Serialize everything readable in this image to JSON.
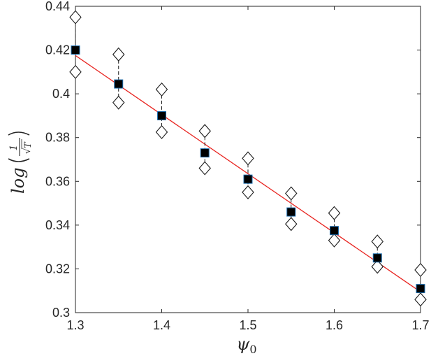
{
  "chart_data": {
    "type": "scatter",
    "xlabel": "ψ0",
    "ylabel": "log(1/√T)",
    "xlim": [
      1.3,
      1.7
    ],
    "ylim": [
      0.3,
      0.44
    ],
    "x_ticks": [
      "1.3",
      "1.4",
      "1.5",
      "1.6",
      "1.7"
    ],
    "y_ticks": [
      "0.3",
      "0.32",
      "0.34",
      "0.36",
      "0.38",
      "0.4",
      "0.42",
      "0.44"
    ],
    "grid": false,
    "legend": "none",
    "series": [
      {
        "marker": "square",
        "color": "#000000",
        "edge_color": "#1f6fb0",
        "x": [
          1.3,
          1.35,
          1.4,
          1.45,
          1.5,
          1.55,
          1.6,
          1.65,
          1.7
        ],
        "y": [
          0.42,
          0.4045,
          0.39,
          0.373,
          0.361,
          0.346,
          0.3375,
          0.325,
          0.311
        ],
        "error_upper": [
          0.435,
          0.418,
          0.402,
          0.383,
          0.3705,
          0.3545,
          0.3455,
          0.3325,
          0.3195
        ],
        "error_lower": [
          0.41,
          0.396,
          0.3825,
          0.366,
          0.355,
          0.3405,
          0.333,
          0.321,
          0.306
        ]
      },
      {
        "type": "line",
        "color": "#e8231f",
        "x": [
          1.3,
          1.7
        ],
        "y": [
          0.4175,
          0.3095
        ]
      }
    ]
  }
}
